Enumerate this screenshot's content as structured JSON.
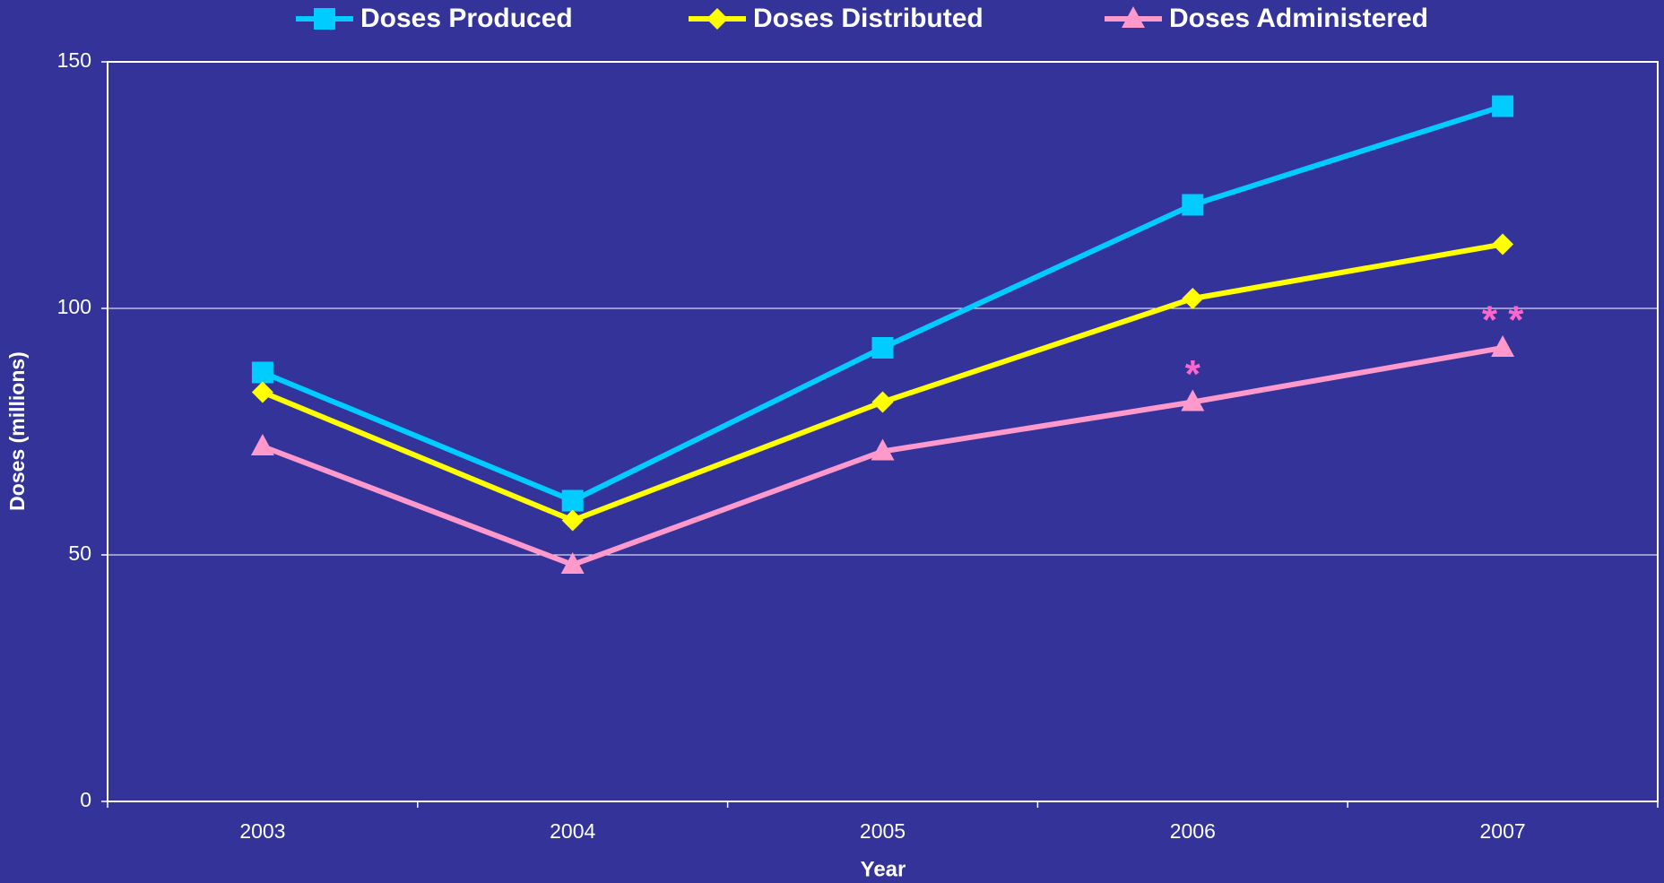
{
  "chart_data": {
    "type": "line",
    "xlabel": "Year",
    "ylabel": "Doses (millions)",
    "categories": [
      "2003",
      "2004",
      "2005",
      "2006",
      "2007"
    ],
    "series": [
      {
        "name": "Doses Produced",
        "color": "#00ccff",
        "marker": "square",
        "values": [
          87,
          61,
          92,
          121,
          141
        ]
      },
      {
        "name": "Doses Distributed",
        "color": "#ffff00",
        "marker": "diamond",
        "values": [
          83,
          57,
          81,
          102,
          113
        ]
      },
      {
        "name": "Doses Administered",
        "color": "#ff99cc",
        "marker": "triangle",
        "values": [
          72,
          48,
          71,
          81,
          92
        ],
        "annotations": [
          null,
          null,
          null,
          "*",
          "* *"
        ],
        "annotation_color": "#ff66cc"
      }
    ],
    "ylim": [
      0,
      150
    ],
    "yticks": [
      0,
      50,
      100,
      150
    ],
    "grid": true,
    "legend": "top"
  }
}
